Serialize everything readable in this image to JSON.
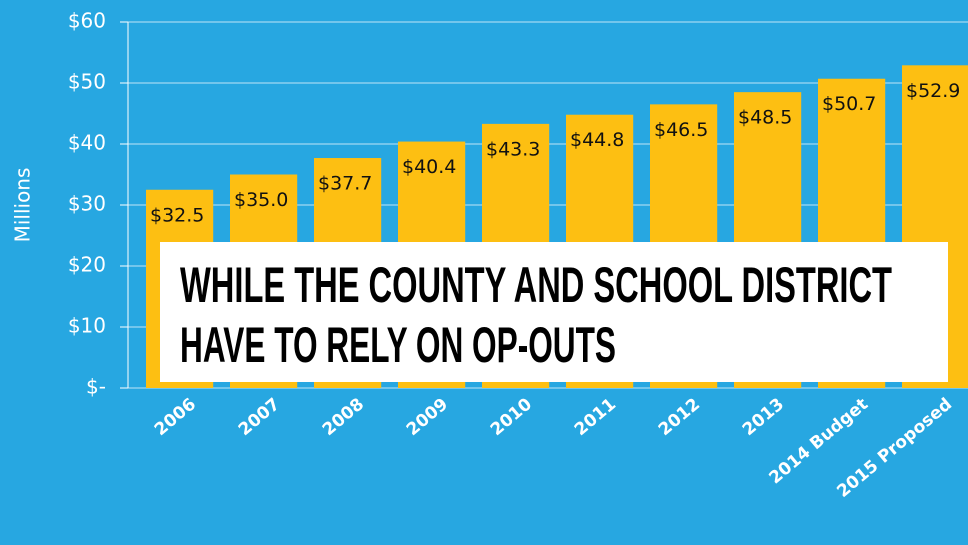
{
  "chart_data": {
    "type": "bar",
    "y_axis_label": "Millions",
    "categories": [
      "2006",
      "2007",
      "2008",
      "2009",
      "2010",
      "2011",
      "2012",
      "2013",
      "2014 Budget",
      "2015 Proposed"
    ],
    "values": [
      32.5,
      35.0,
      37.7,
      40.4,
      43.3,
      44.8,
      46.5,
      48.5,
      50.7,
      52.9
    ],
    "value_labels": [
      "$32.5",
      "$35.0",
      "$37.7",
      "$40.4",
      "$43.3",
      "$44.8",
      "$46.5",
      "$48.5",
      "$50.7",
      "$52.9"
    ],
    "color": "#fdbf12",
    "ylim": [
      0,
      60
    ],
    "yticks": [
      {
        "value": 0,
        "label": "$-"
      },
      {
        "value": 10,
        "label": "$10"
      },
      {
        "value": 20,
        "label": "$20"
      },
      {
        "value": 30,
        "label": "$30"
      },
      {
        "value": 40,
        "label": "$40"
      },
      {
        "value": 50,
        "label": "$50"
      },
      {
        "value": 60,
        "label": "$60"
      }
    ],
    "grid": true,
    "annotation": [
      "WHILE THE COUNTY AND SCHOOL DISTRICT",
      "HAVE TO RELY ON OP-OUTS"
    ]
  }
}
